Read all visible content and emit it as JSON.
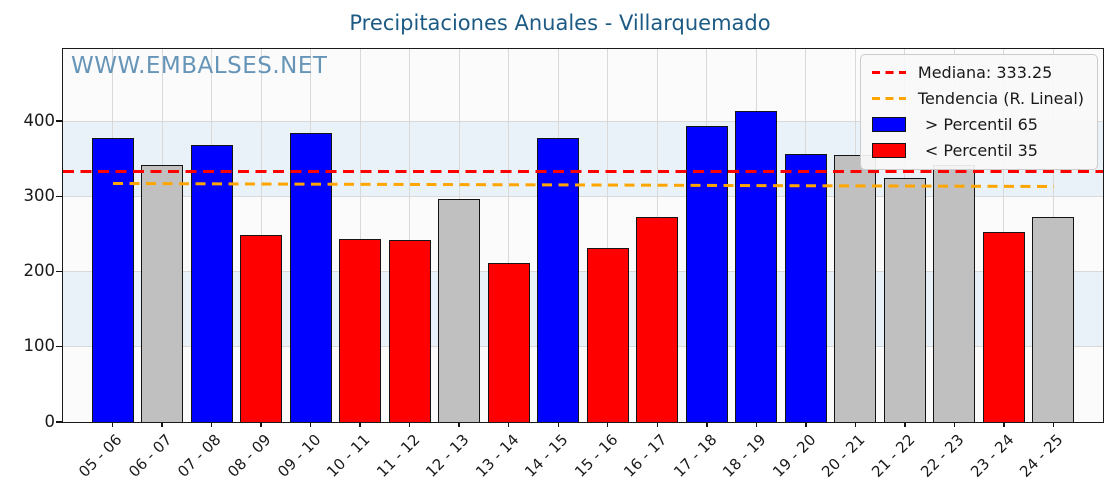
{
  "chart_data": {
    "type": "bar",
    "title": "Precipitaciones Anuales - Villarquemado",
    "watermark": "WWW.EMBALSES.NET",
    "categories": [
      "05 - 06",
      "06 - 07",
      "07 - 08",
      "08 - 09",
      "09 - 10",
      "10 - 11",
      "11 - 12",
      "12 - 13",
      "13 - 14",
      "14 - 15",
      "15 - 16",
      "16 - 17",
      "17 - 18",
      "18 - 19",
      "19 - 20",
      "20 - 21",
      "21 - 22",
      "22 - 23",
      "23 - 24",
      "24 - 25"
    ],
    "values": [
      377,
      341.5,
      368,
      249,
      384,
      244,
      242,
      296,
      212,
      377,
      231,
      272,
      393,
      414,
      357,
      355,
      325,
      342,
      253,
      273
    ],
    "classes": [
      "above",
      "mid",
      "above",
      "below",
      "above",
      "below",
      "below",
      "mid",
      "below",
      "above",
      "below",
      "below",
      "above",
      "above",
      "above",
      "mid",
      "mid",
      "mid",
      "below",
      "mid"
    ],
    "median": 333.25,
    "trend": {
      "start_value": 318,
      "end_value": 314
    },
    "yticks": [
      0,
      100,
      200,
      300,
      400
    ],
    "ylim": [
      0,
      496
    ],
    "bands": [
      [
        100,
        200
      ],
      [
        300,
        400
      ]
    ],
    "grid": true,
    "legend_position": "upper right",
    "legend": {
      "median_label": "Mediana: 333.25",
      "trend_label": "Tendencia (R. Lineal)",
      "above_label": "> Percentil 65",
      "below_label": "< Percentil 35"
    },
    "colors": {
      "above": "#0000ff",
      "below": "#ff0000",
      "mid": "#c0c0c0",
      "median_line": "#ff0000",
      "trend_line": "#ffa500",
      "band": "#e9f2f8",
      "title": "#1d5b85",
      "watermark": "#5e8fb4"
    }
  }
}
